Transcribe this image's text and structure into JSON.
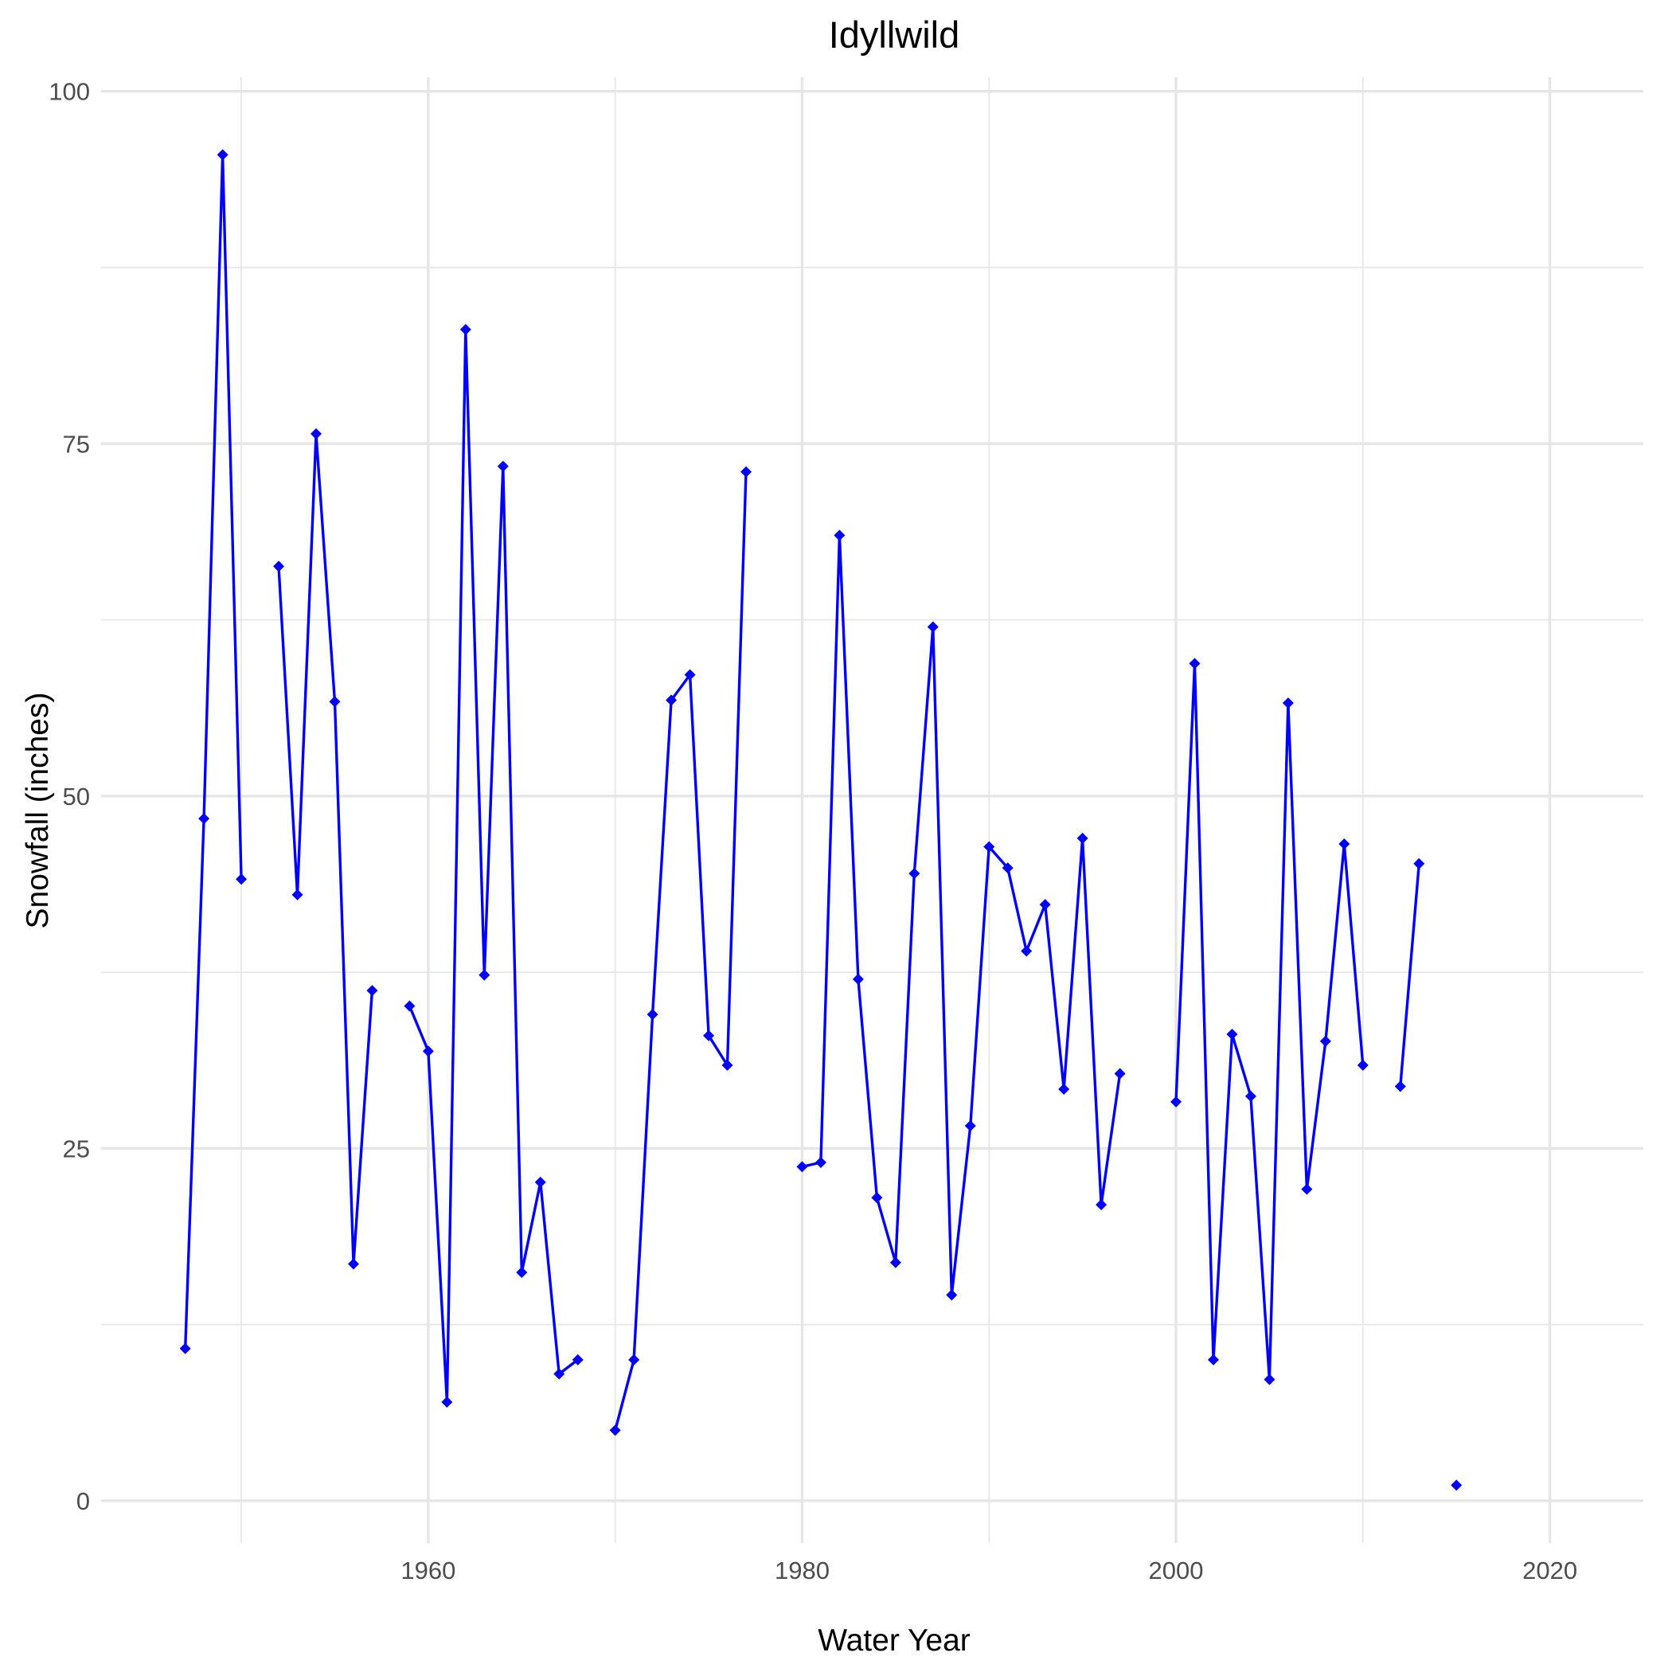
{
  "chart_data": {
    "type": "line",
    "title": "Idyllwild",
    "xlabel": "Water Year",
    "ylabel": "Snowfall (inches)",
    "xlim": [
      1942.5,
      2025
    ],
    "ylim": [
      -3,
      101
    ],
    "x_ticks": [
      1960,
      1980,
      2000,
      2020
    ],
    "y_ticks": [
      0,
      25,
      50,
      75,
      100
    ],
    "grid": true,
    "legend": "none",
    "line_color": "#0000ff",
    "series": [
      {
        "points": [
          [
            1947,
            10.8
          ],
          [
            1948,
            48.4
          ],
          [
            1949,
            95.5
          ],
          [
            1950,
            44.1
          ],
          [
            1951,
            null
          ],
          [
            1952,
            66.3
          ],
          [
            1953,
            43.0
          ],
          [
            1954,
            75.7
          ],
          [
            1955,
            56.7
          ],
          [
            1956,
            16.8
          ],
          [
            1957,
            36.2
          ],
          [
            1958,
            null
          ],
          [
            1959,
            35.1
          ],
          [
            1960,
            31.9
          ],
          [
            1961,
            7.0
          ],
          [
            1962,
            83.1
          ],
          [
            1963,
            37.3
          ],
          [
            1964,
            73.4
          ],
          [
            1965,
            16.2
          ],
          [
            1966,
            22.6
          ],
          [
            1967,
            9.0
          ],
          [
            1968,
            10.0
          ],
          [
            1969,
            null
          ],
          [
            1970,
            5.0
          ],
          [
            1971,
            10.0
          ],
          [
            1972,
            34.5
          ],
          [
            1973,
            56.8
          ],
          [
            1974,
            58.6
          ],
          [
            1975,
            33.0
          ],
          [
            1976,
            30.9
          ],
          [
            1977,
            73.0
          ],
          [
            1978,
            null
          ],
          [
            1979,
            null
          ],
          [
            1980,
            23.7
          ],
          [
            1981,
            24.0
          ],
          [
            1982,
            68.5
          ],
          [
            1983,
            37.0
          ],
          [
            1984,
            21.5
          ],
          [
            1985,
            16.9
          ],
          [
            1986,
            44.5
          ],
          [
            1987,
            62.0
          ],
          [
            1988,
            14.6
          ],
          [
            1989,
            26.6
          ],
          [
            1990,
            46.4
          ],
          [
            1991,
            44.9
          ],
          [
            1992,
            39.0
          ],
          [
            1993,
            42.3
          ],
          [
            1994,
            29.2
          ],
          [
            1995,
            47.0
          ],
          [
            1996,
            21.0
          ],
          [
            1997,
            30.3
          ],
          [
            1998,
            null
          ],
          [
            1999,
            null
          ],
          [
            2000,
            28.3
          ],
          [
            2001,
            59.4
          ],
          [
            2002,
            10.0
          ],
          [
            2003,
            33.1
          ],
          [
            2004,
            28.7
          ],
          [
            2005,
            8.6
          ],
          [
            2006,
            56.6
          ],
          [
            2007,
            22.1
          ],
          [
            2008,
            32.6
          ],
          [
            2009,
            46.6
          ],
          [
            2010,
            30.9
          ],
          [
            2011,
            null
          ],
          [
            2012,
            29.4
          ],
          [
            2013,
            45.2
          ],
          [
            2014,
            null
          ],
          [
            2015,
            1.1
          ],
          [
            2016,
            null
          ]
        ]
      }
    ]
  }
}
